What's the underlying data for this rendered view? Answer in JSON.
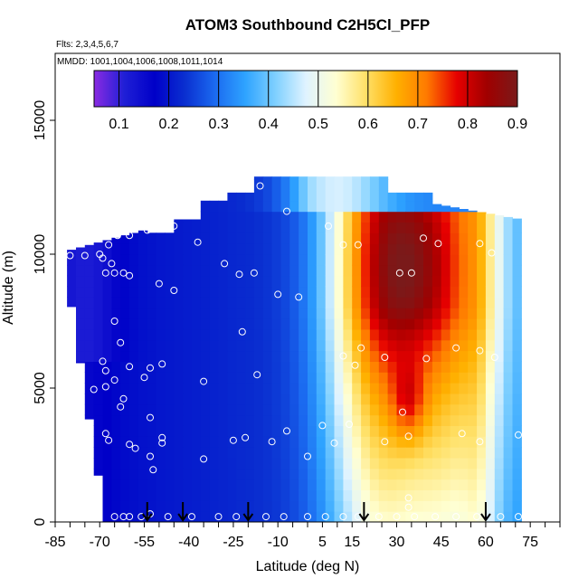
{
  "chart_data": {
    "type": "heatmap",
    "title": "ATOM3 Southbound C2H5Cl_PFP",
    "annotations": {
      "flights": "Flts: 2,3,4,5,6,7",
      "dates": "MMDD: 1001,1004,1006,1008,1011,1014"
    },
    "xlabel": "Latitude (deg N)",
    "ylabel": "Altitude (m)",
    "xlim": [
      -85,
      85
    ],
    "ylim": [
      0,
      17500
    ],
    "x_tick_labels": [
      "-85",
      "-70",
      "-55",
      "-40",
      "-25",
      "-10",
      "5",
      "15",
      "30",
      "45",
      "60",
      "75"
    ],
    "x_tick_values": [
      -85,
      -70,
      -55,
      -40,
      -25,
      -10,
      5,
      15,
      30,
      45,
      60,
      75
    ],
    "y_tick_labels": [
      "0",
      "5000",
      "10000",
      "15000"
    ],
    "y_tick_values": [
      0,
      5000,
      10000,
      15000
    ],
    "colorbar": {
      "min": 0.05,
      "max": 0.9,
      "tick_labels": [
        "0.1",
        "0.2",
        "0.3",
        "0.4",
        "0.5",
        "0.6",
        "0.7",
        "0.8",
        "0.9"
      ],
      "tick_values": [
        0.1,
        0.2,
        0.3,
        0.4,
        0.5,
        0.6,
        0.7,
        0.8,
        0.9
      ],
      "colors": [
        "#8a2be2",
        "#1f1fd6",
        "#0000c8",
        "#0a2fd0",
        "#1b6af0",
        "#2ea3ff",
        "#7fd0ff",
        "#dff3ff",
        "#ffffd2",
        "#ffe066",
        "#ffb000",
        "#ff7a00",
        "#e60000",
        "#a00000",
        "#7a1a1a"
      ]
    },
    "grid": false,
    "samples": [
      {
        "lat": -80,
        "alt": 9950
      },
      {
        "lat": -75,
        "alt": 9950
      },
      {
        "lat": -70,
        "alt": 10000
      },
      {
        "lat": -69,
        "alt": 9850
      },
      {
        "lat": -67,
        "alt": 10350
      },
      {
        "lat": -66,
        "alt": 9650
      },
      {
        "lat": -68,
        "alt": 9300
      },
      {
        "lat": -65,
        "alt": 9300
      },
      {
        "lat": -62,
        "alt": 9300
      },
      {
        "lat": -60,
        "alt": 9200
      },
      {
        "lat": -64,
        "alt": 10700
      },
      {
        "lat": -60,
        "alt": 10700
      },
      {
        "lat": -54,
        "alt": 10900
      },
      {
        "lat": -45,
        "alt": 11050
      },
      {
        "lat": -37,
        "alt": 10450
      },
      {
        "lat": -50,
        "alt": 8900
      },
      {
        "lat": -45,
        "alt": 8650
      },
      {
        "lat": -28,
        "alt": 9650
      },
      {
        "lat": -23,
        "alt": 9250
      },
      {
        "lat": -18,
        "alt": 9300
      },
      {
        "lat": -65,
        "alt": 7500
      },
      {
        "lat": -63,
        "alt": 6700
      },
      {
        "lat": -69,
        "alt": 6000
      },
      {
        "lat": -68,
        "alt": 5650
      },
      {
        "lat": -65,
        "alt": 5300
      },
      {
        "lat": -60,
        "alt": 5800
      },
      {
        "lat": -53,
        "alt": 5750
      },
      {
        "lat": -49,
        "alt": 5900
      },
      {
        "lat": -55,
        "alt": 5400
      },
      {
        "lat": -72,
        "alt": 4950
      },
      {
        "lat": -68,
        "alt": 5050
      },
      {
        "lat": -62,
        "alt": 4600
      },
      {
        "lat": -63,
        "alt": 4300
      },
      {
        "lat": -35,
        "alt": 5250
      },
      {
        "lat": -22,
        "alt": 7100
      },
      {
        "lat": -17,
        "alt": 5500
      },
      {
        "lat": -53,
        "alt": 3900
      },
      {
        "lat": -49,
        "alt": 3150
      },
      {
        "lat": -49,
        "alt": 2950
      },
      {
        "lat": -58,
        "alt": 2750
      },
      {
        "lat": -68,
        "alt": 3300
      },
      {
        "lat": -67,
        "alt": 3050
      },
      {
        "lat": -60,
        "alt": 2900
      },
      {
        "lat": -53,
        "alt": 2450
      },
      {
        "lat": -52,
        "alt": 1950
      },
      {
        "lat": -35,
        "alt": 2350
      },
      {
        "lat": -25,
        "alt": 3050
      },
      {
        "lat": -21,
        "alt": 3150
      },
      {
        "lat": -12,
        "alt": 3000
      },
      {
        "lat": -7,
        "alt": 3400
      },
      {
        "lat": 0,
        "alt": 2450
      },
      {
        "lat": 5,
        "alt": 3600
      },
      {
        "lat": 14,
        "alt": 3650
      },
      {
        "lat": 9,
        "alt": 2950
      },
      {
        "lat": 26,
        "alt": 3000
      },
      {
        "lat": 34,
        "alt": 3200
      },
      {
        "lat": 52,
        "alt": 3300
      },
      {
        "lat": 58,
        "alt": 3000
      },
      {
        "lat": 71,
        "alt": 3250
      },
      {
        "lat": 32,
        "alt": 4100
      },
      {
        "lat": -10,
        "alt": 8500
      },
      {
        "lat": -3,
        "alt": 8400
      },
      {
        "lat": -7,
        "alt": 11600
      },
      {
        "lat": -16,
        "alt": 12550
      },
      {
        "lat": 7,
        "alt": 11050
      },
      {
        "lat": 12,
        "alt": 10350
      },
      {
        "lat": 17,
        "alt": 10350
      },
      {
        "lat": 31,
        "alt": 9300
      },
      {
        "lat": 35,
        "alt": 9300
      },
      {
        "lat": 39,
        "alt": 10600
      },
      {
        "lat": 44,
        "alt": 10400
      },
      {
        "lat": 58,
        "alt": 10400
      },
      {
        "lat": 62,
        "alt": 10050
      },
      {
        "lat": 67,
        "alt": 11850
      },
      {
        "lat": 12,
        "alt": 6200
      },
      {
        "lat": 16,
        "alt": 5850
      },
      {
        "lat": 18,
        "alt": 6500
      },
      {
        "lat": 26,
        "alt": 6150
      },
      {
        "lat": 40,
        "alt": 6100
      },
      {
        "lat": 50,
        "alt": 6500
      },
      {
        "lat": 58,
        "alt": 6400
      },
      {
        "lat": 63,
        "alt": 6150
      },
      {
        "lat": 34,
        "alt": 900
      },
      {
        "lat": 34,
        "alt": 550
      },
      {
        "lat": -65,
        "alt": 200
      },
      {
        "lat": -62,
        "alt": 200
      },
      {
        "lat": -60,
        "alt": 200
      },
      {
        "lat": -56,
        "alt": 200
      },
      {
        "lat": -53,
        "alt": 300
      },
      {
        "lat": -47,
        "alt": 200
      },
      {
        "lat": -39,
        "alt": 200
      },
      {
        "lat": -30,
        "alt": 200
      },
      {
        "lat": -24,
        "alt": 200
      },
      {
        "lat": -14,
        "alt": 200
      },
      {
        "lat": -8,
        "alt": 200
      },
      {
        "lat": 0,
        "alt": 200
      },
      {
        "lat": 6,
        "alt": 200
      },
      {
        "lat": 12,
        "alt": 200
      },
      {
        "lat": 17,
        "alt": 200
      },
      {
        "lat": 24,
        "alt": 200
      },
      {
        "lat": 30,
        "alt": 200
      },
      {
        "lat": 36,
        "alt": 200
      },
      {
        "lat": 43,
        "alt": 200
      },
      {
        "lat": 50,
        "alt": 200
      },
      {
        "lat": 57,
        "alt": 200
      },
      {
        "lat": 65,
        "alt": 200
      },
      {
        "lat": 71,
        "alt": 200
      }
    ],
    "profile_markers_lat": [
      -54,
      -42,
      -20,
      19,
      60
    ]
  }
}
